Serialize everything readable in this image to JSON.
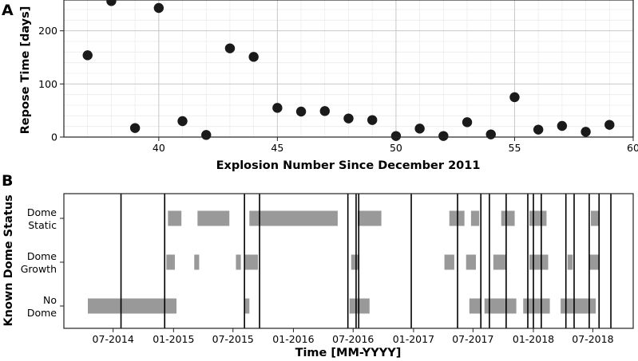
{
  "chart_data": [
    {
      "panel": "A",
      "type": "scatter",
      "xlabel": "Explosion Number Since December 2011",
      "ylabel": "Repose Time [days]",
      "xlim": [
        36,
        60
      ],
      "ylim": [
        0,
        258
      ],
      "x_ticks": [
        "40",
        "45",
        "50",
        "55",
        "60"
      ],
      "y_ticks": [
        "0",
        "100",
        "200"
      ],
      "grid": true,
      "marker_color": "#1a1a1a",
      "series": [
        {
          "x": [
            37,
            38,
            39,
            40,
            41,
            42,
            43,
            44,
            45,
            46,
            47,
            48,
            49,
            50,
            51,
            52,
            53,
            54,
            55,
            56,
            57,
            58,
            59
          ],
          "y": [
            154,
            256,
            17,
            243,
            30,
            4,
            167,
            151,
            55,
            48,
            49,
            35,
            32,
            2,
            16,
            2,
            28,
            5,
            75,
            14,
            21,
            10,
            23
          ]
        }
      ]
    },
    {
      "panel": "B",
      "type": "timeline",
      "xlabel": "Time [MM-YYYY]",
      "ylabel": "Known Dome Status",
      "xlim": [
        "2014-02-01",
        "2018-11-01"
      ],
      "x_ticks": [
        "07-2014",
        "01-2015",
        "07-2015",
        "01-2016",
        "07-2016",
        "01-2017",
        "07-2017",
        "01-2018",
        "07-2018"
      ],
      "categories": [
        {
          "line1": "Dome",
          "line2": "Static"
        },
        {
          "line1": "Dome",
          "line2": "Growth"
        },
        {
          "line1": "No",
          "line2": "Dome"
        }
      ],
      "bar_color": "#999999",
      "line_color": "#000000",
      "status_periods": [
        {
          "status": 0,
          "start": "2014-12-15",
          "end": "2015-01-25"
        },
        {
          "status": 0,
          "start": "2015-03-15",
          "end": "2015-06-20"
        },
        {
          "status": 0,
          "start": "2015-08-20",
          "end": "2016-05-15"
        },
        {
          "status": 0,
          "start": "2016-07-15",
          "end": "2016-09-25"
        },
        {
          "status": 0,
          "start": "2017-04-20",
          "end": "2017-06-05"
        },
        {
          "status": 0,
          "start": "2017-06-25",
          "end": "2017-07-20"
        },
        {
          "status": 0,
          "start": "2017-09-25",
          "end": "2017-11-05"
        },
        {
          "status": 0,
          "start": "2017-12-20",
          "end": "2018-02-10"
        },
        {
          "status": 0,
          "start": "2018-06-25",
          "end": "2018-07-20"
        },
        {
          "status": 1,
          "start": "2014-12-10",
          "end": "2015-01-05"
        },
        {
          "status": 1,
          "start": "2015-03-05",
          "end": "2015-03-20"
        },
        {
          "status": 1,
          "start": "2015-07-10",
          "end": "2015-07-25"
        },
        {
          "status": 1,
          "start": "2015-08-05",
          "end": "2015-09-15"
        },
        {
          "status": 1,
          "start": "2016-06-25",
          "end": "2016-07-20"
        },
        {
          "status": 1,
          "start": "2017-04-05",
          "end": "2017-05-05"
        },
        {
          "status": 1,
          "start": "2017-06-10",
          "end": "2017-07-10"
        },
        {
          "status": 1,
          "start": "2017-09-01",
          "end": "2017-10-10"
        },
        {
          "status": 1,
          "start": "2017-12-20",
          "end": "2018-02-15"
        },
        {
          "status": 1,
          "start": "2018-04-15",
          "end": "2018-05-01"
        },
        {
          "status": 1,
          "start": "2018-06-20",
          "end": "2018-07-20"
        },
        {
          "status": 2,
          "start": "2014-04-15",
          "end": "2015-01-10"
        },
        {
          "status": 2,
          "start": "2015-08-05",
          "end": "2015-08-20"
        },
        {
          "status": 2,
          "start": "2016-06-20",
          "end": "2016-08-20"
        },
        {
          "status": 2,
          "start": "2017-06-20",
          "end": "2017-07-25"
        },
        {
          "status": 2,
          "start": "2017-08-05",
          "end": "2017-11-10"
        },
        {
          "status": 2,
          "start": "2017-12-01",
          "end": "2018-02-20"
        },
        {
          "status": 2,
          "start": "2018-03-25",
          "end": "2018-07-10"
        }
      ],
      "explosion_dates": [
        "2014-07-25",
        "2014-12-05",
        "2015-08-05",
        "2015-09-20",
        "2016-06-15",
        "2016-07-10",
        "2016-07-18",
        "2016-12-25",
        "2017-05-15",
        "2017-07-25",
        "2017-08-20",
        "2017-10-10",
        "2017-12-15",
        "2018-01-01",
        "2018-01-25",
        "2018-04-10",
        "2018-05-05",
        "2018-06-20",
        "2018-07-20",
        "2018-08-25"
      ]
    }
  ]
}
